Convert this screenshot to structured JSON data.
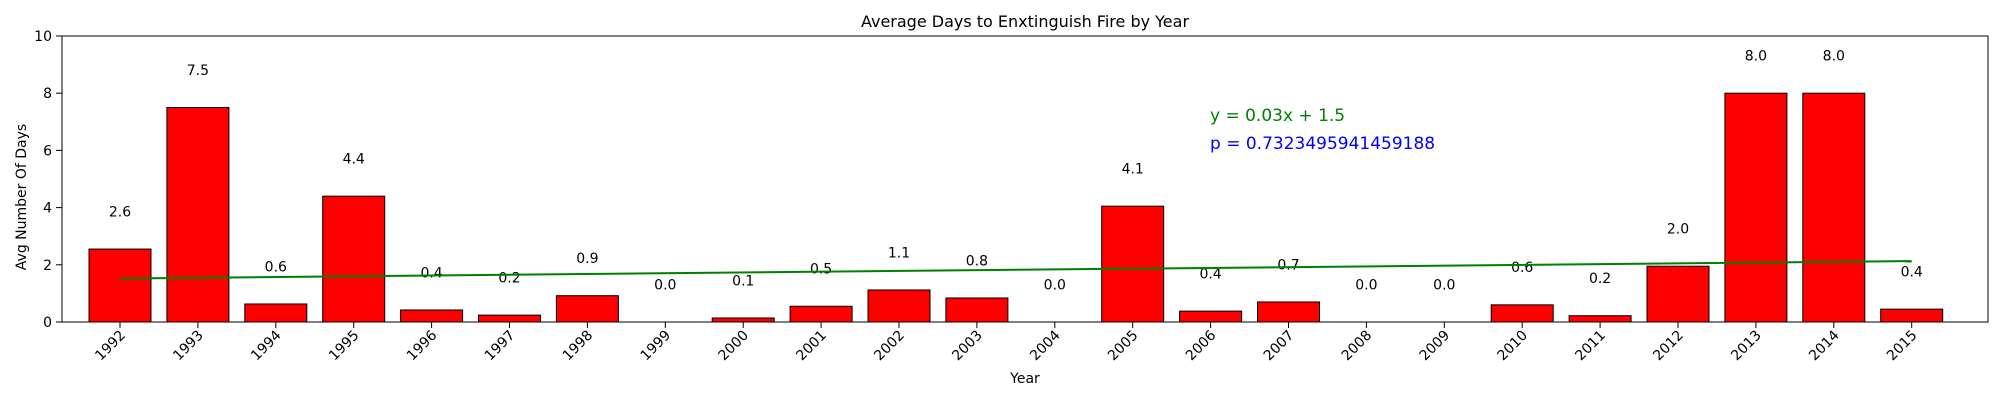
{
  "chart_data": {
    "type": "bar",
    "title": "Average Days to Enxtinguish Fire by Year",
    "xlabel": "Year",
    "ylabel": "Avg Number Of Days",
    "ylim": [
      0,
      10
    ],
    "yticks": [
      0,
      2,
      4,
      6,
      8,
      10
    ],
    "categories": [
      "1992",
      "1993",
      "1994",
      "1995",
      "1996",
      "1997",
      "1998",
      "1999",
      "2000",
      "2001",
      "2002",
      "2003",
      "2004",
      "2005",
      "2006",
      "2007",
      "2008",
      "2009",
      "2010",
      "2011",
      "2012",
      "2013",
      "2014",
      "2015"
    ],
    "values": [
      2.55,
      7.5,
      0.63,
      4.4,
      0.42,
      0.24,
      0.92,
      0.0,
      0.14,
      0.55,
      1.12,
      0.84,
      0.0,
      4.05,
      0.38,
      0.7,
      0.0,
      0.0,
      0.6,
      0.22,
      1.95,
      8.0,
      8.0,
      0.45
    ],
    "data_labels": [
      "2.6",
      "7.5",
      "0.6",
      "4.4",
      "0.4",
      "0.2",
      "0.9",
      "0.0",
      "0.1",
      "0.5",
      "1.1",
      "0.8",
      "0.0",
      "4.1",
      "0.4",
      "0.7",
      "0.0",
      "0.0",
      "0.6",
      "0.2",
      "2.0",
      "8.0",
      "8.0",
      "0.4"
    ],
    "bar_color": "#ff0000",
    "bar_edge_color": "#000000",
    "trendline": {
      "start": 1.52,
      "end": 2.13,
      "color": "#008000"
    },
    "annotations": {
      "equation": "y = 0.03x + 1.5",
      "equation_color": "#008000",
      "pvalue": "p = 0.7323495941459188",
      "pvalue_color": "#0000ff"
    },
    "grid": false,
    "legend": "none"
  }
}
